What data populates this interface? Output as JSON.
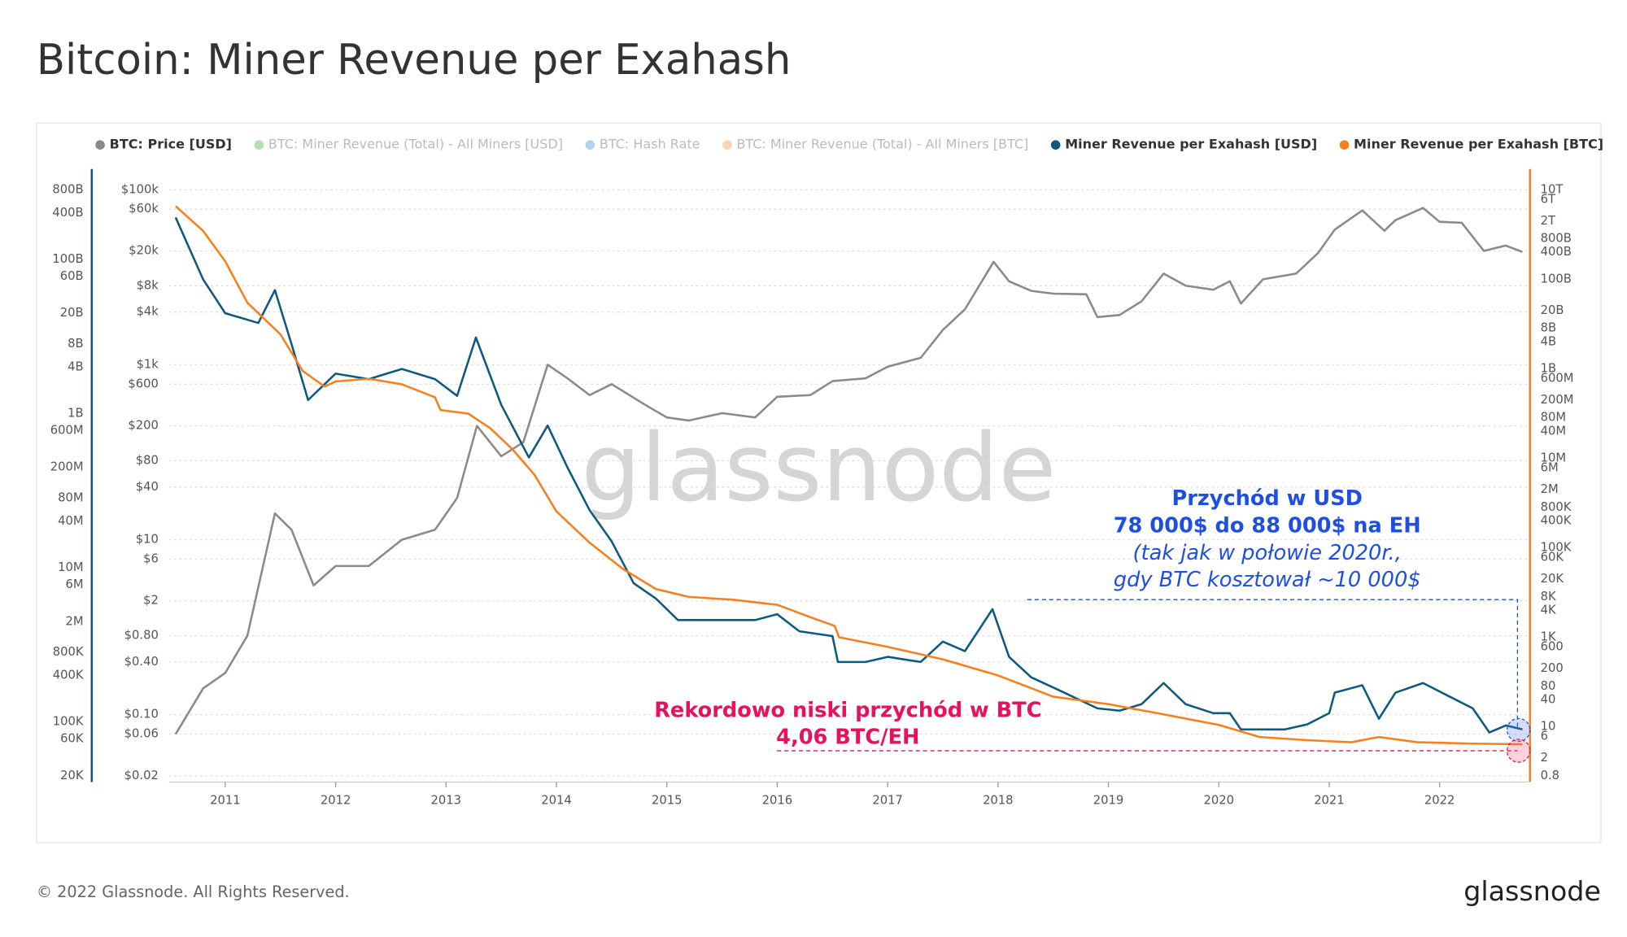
{
  "chart_data": {
    "type": "line",
    "title": "Bitcoin: Miner Revenue per Exahash",
    "footer": "© 2022 Glassnode. All Rights Reserved.",
    "logo": "glassnode",
    "watermark": "glassnode",
    "log_scale": true,
    "grid": true,
    "legend_position": "top",
    "xlim": [
      2010.49,
      2022.8
    ],
    "xticks": [
      2011,
      2012,
      2013,
      2014,
      2015,
      2016,
      2017,
      2018,
      2019,
      2020,
      2021,
      2022
    ],
    "ylim": [
      0.02,
      100000
    ],
    "yticks": [
      {
        "value": 100000,
        "label": "$100k"
      },
      {
        "value": 60000,
        "label": "$60k"
      },
      {
        "value": 20000,
        "label": "$20k"
      },
      {
        "value": 8000,
        "label": "$8k"
      },
      {
        "value": 4000,
        "label": "$4k"
      },
      {
        "value": 1000,
        "label": "$1k"
      },
      {
        "value": 600,
        "label": "$600"
      },
      {
        "value": 200,
        "label": "$200"
      },
      {
        "value": 80,
        "label": "$80"
      },
      {
        "value": 40,
        "label": "$40"
      },
      {
        "value": 10,
        "label": "$10"
      },
      {
        "value": 6,
        "label": "$6"
      },
      {
        "value": 2,
        "label": "$2"
      },
      {
        "value": 0.8,
        "label": "$0.80"
      },
      {
        "value": 0.4,
        "label": "$0.40"
      },
      {
        "value": 0.1,
        "label": "$0.10"
      },
      {
        "value": 0.06,
        "label": "$0.06"
      },
      {
        "value": 0.02,
        "label": "$0.02"
      }
    ],
    "y3lim": [
      20000,
      800000000000
    ],
    "y3ticks": [
      {
        "value": 800000000000,
        "label": "800B"
      },
      {
        "value": 400000000000,
        "label": "400B"
      },
      {
        "value": 100000000000,
        "label": "100B"
      },
      {
        "value": 60000000000,
        "label": "60B"
      },
      {
        "value": 20000000000,
        "label": "20B"
      },
      {
        "value": 8000000000,
        "label": "8B"
      },
      {
        "value": 4000000000,
        "label": "4B"
      },
      {
        "value": 1000000000,
        "label": "1B"
      },
      {
        "value": 600000000,
        "label": "600M"
      },
      {
        "value": 200000000,
        "label": "200M"
      },
      {
        "value": 80000000,
        "label": "80M"
      },
      {
        "value": 40000000,
        "label": "40M"
      },
      {
        "value": 10000000,
        "label": "10M"
      },
      {
        "value": 6000000,
        "label": "6M"
      },
      {
        "value": 2000000,
        "label": "2M"
      },
      {
        "value": 800000,
        "label": "800K"
      },
      {
        "value": 400000,
        "label": "400K"
      },
      {
        "value": 100000,
        "label": "100K"
      },
      {
        "value": 60000,
        "label": "60K"
      },
      {
        "value": 20000,
        "label": "20K"
      }
    ],
    "y2lim": [
      0.8,
      10000000000000
    ],
    "y2ticks": [
      {
        "value": 10000000000000,
        "label": "10T"
      },
      {
        "value": 6000000000000,
        "label": "6T"
      },
      {
        "value": 2000000000000,
        "label": "2T"
      },
      {
        "value": 800000000000,
        "label": "800B"
      },
      {
        "value": 400000000000,
        "label": "400B"
      },
      {
        "value": 100000000000,
        "label": "100B"
      },
      {
        "value": 20000000000,
        "label": "20B"
      },
      {
        "value": 8000000000,
        "label": "8B"
      },
      {
        "value": 4000000000,
        "label": "4B"
      },
      {
        "value": 1000000000,
        "label": "1B"
      },
      {
        "value": 600000000,
        "label": "600M"
      },
      {
        "value": 200000000,
        "label": "200M"
      },
      {
        "value": 80000000,
        "label": "80M"
      },
      {
        "value": 40000000,
        "label": "40M"
      },
      {
        "value": 10000000,
        "label": "10M"
      },
      {
        "value": 6000000,
        "label": "6M"
      },
      {
        "value": 2000000,
        "label": "2M"
      },
      {
        "value": 800000,
        "label": "800K"
      },
      {
        "value": 400000,
        "label": "400K"
      },
      {
        "value": 100000,
        "label": "100K"
      },
      {
        "value": 60000,
        "label": "60K"
      },
      {
        "value": 20000,
        "label": "20K"
      },
      {
        "value": 8000,
        "label": "8K"
      },
      {
        "value": 4000,
        "label": "4K"
      },
      {
        "value": 1000,
        "label": "1K"
      },
      600,
      200,
      80,
      40,
      10,
      6,
      2,
      0.8
    ],
    "series": [
      {
        "name": "BTC: Price [USD]",
        "color": "#8a8a8a",
        "visible": true,
        "axis": "y",
        "x": [
          2010.55,
          2010.8,
          2011.0,
          2011.2,
          2011.45,
          2011.6,
          2011.8,
          2012.0,
          2012.3,
          2012.6,
          2012.9,
          2013.1,
          2013.28,
          2013.5,
          2013.7,
          2013.92,
          2014.1,
          2014.3,
          2014.5,
          2014.8,
          2015.0,
          2015.2,
          2015.5,
          2015.8,
          2016.0,
          2016.3,
          2016.5,
          2016.8,
          2017.0,
          2017.3,
          2017.5,
          2017.7,
          2017.96,
          2018.1,
          2018.3,
          2018.5,
          2018.8,
          2018.9,
          2019.1,
          2019.3,
          2019.5,
          2019.7,
          2019.95,
          2020.1,
          2020.2,
          2020.4,
          2020.7,
          2020.9,
          2021.05,
          2021.3,
          2021.5,
          2021.6,
          2021.85,
          2022.0,
          2022.2,
          2022.4,
          2022.6,
          2022.75
        ],
        "values": [
          0.06,
          0.2,
          0.3,
          0.8,
          20,
          13,
          3,
          5,
          5,
          10,
          13,
          30,
          200,
          90,
          130,
          1000,
          700,
          450,
          600,
          350,
          250,
          230,
          280,
          250,
          430,
          450,
          650,
          700,
          950,
          1200,
          2500,
          4300,
          15000,
          9000,
          7000,
          6500,
          6400,
          3500,
          3700,
          5300,
          11000,
          8000,
          7200,
          9000,
          5000,
          9500,
          11000,
          19000,
          35000,
          58000,
          34000,
          45000,
          62000,
          43000,
          42000,
          20000,
          23000,
          19500
        ]
      },
      {
        "name": "BTC: Miner Revenue (Total) - All Miners [USD]",
        "color": "#1aa51a",
        "visible": false
      },
      {
        "name": "BTC: Hash Rate",
        "color": "#2f7ed8",
        "visible": false
      },
      {
        "name": "BTC: Miner Revenue (Total) - All Miners [BTC]",
        "color": "#f7801e",
        "visible": false
      },
      {
        "name": "Miner Revenue per Exahash [USD]",
        "color": "#0e5a7e",
        "visible": true,
        "axis": "y3",
        "x": [
          2010.55,
          2010.8,
          2011.0,
          2011.3,
          2011.45,
          2011.6,
          2011.75,
          2012.0,
          2012.3,
          2012.6,
          2012.9,
          2013.1,
          2013.27,
          2013.5,
          2013.75,
          2013.92,
          2014.1,
          2014.3,
          2014.5,
          2014.7,
          2014.9,
          2015.1,
          2015.5,
          2015.8,
          2016.0,
          2016.2,
          2016.5,
          2016.55,
          2016.8,
          2017.0,
          2017.3,
          2017.5,
          2017.7,
          2017.95,
          2018.1,
          2018.3,
          2018.6,
          2018.9,
          2019.1,
          2019.3,
          2019.5,
          2019.7,
          2019.95,
          2020.1,
          2020.2,
          2020.4,
          2020.6,
          2020.8,
          2021.0,
          2021.05,
          2021.3,
          2021.45,
          2021.6,
          2021.85,
          2022.1,
          2022.3,
          2022.45,
          2022.6,
          2022.75
        ],
        "values": [
          350000000000,
          55000000000,
          20000000000,
          15000000000,
          40000000000,
          8000000000,
          1500000000,
          3300000000,
          2800000000,
          3800000000,
          2800000000,
          1700000000,
          9700000000,
          1300000000,
          270000000,
          700000000,
          200000000,
          56000000,
          22000000,
          6300000,
          4000000,
          2100000,
          2100000,
          2100000,
          2500000,
          1500000,
          1300000,
          600000,
          600000,
          700000,
          600000,
          1100000,
          830000,
          2900000,
          700000,
          380000,
          240000,
          150000,
          140000,
          170000,
          320000,
          170000,
          130000,
          130000,
          80000,
          80000,
          80000,
          93000,
          130000,
          240000,
          300000,
          110000,
          240000,
          320000,
          210000,
          150000,
          73000,
          90000,
          80000
        ]
      },
      {
        "name": "Miner Revenue per Exahash [BTC]",
        "color": "#f7801e",
        "visible": true,
        "axis": "y2",
        "x": [
          2010.55,
          2010.8,
          2011.0,
          2011.2,
          2011.5,
          2011.7,
          2011.9,
          2012.0,
          2012.3,
          2012.6,
          2012.9,
          2012.95,
          2013.2,
          2013.4,
          2013.6,
          2013.8,
          2014.0,
          2014.3,
          2014.6,
          2014.9,
          2015.2,
          2015.6,
          2016.0,
          2016.3,
          2016.52,
          2016.56,
          2017.0,
          2017.5,
          2018.0,
          2018.5,
          2019.0,
          2019.5,
          2020.0,
          2020.37,
          2020.8,
          2021.2,
          2021.45,
          2021.8,
          2022.3,
          2022.6,
          2022.75
        ],
        "values": [
          4300000000000,
          1200000000000,
          250000000000,
          30000000000,
          5900000000,
          900000000,
          400000000,
          520000000,
          600000000,
          450000000,
          230000000,
          120000000,
          100000000,
          47000000,
          16000000,
          4300000,
          650000,
          130000,
          34000,
          12000,
          8000,
          6900,
          5300,
          2800,
          1800,
          1000,
          610,
          320,
          140,
          47,
          32,
          19,
          11,
          5.9,
          5,
          4.5,
          5.9,
          4.5,
          4.2,
          4.1,
          4.06
        ]
      }
    ],
    "annotations": {
      "usd_title": "Przychód w USD",
      "usd_range": "78 000$ do 88 000$ na EH",
      "usd_note1": "(tak jak w połowie 2020r.,",
      "usd_note2": "gdy BTC kosztował ~10 000$",
      "btc_title": "Rekordowo niski przychód w BTC",
      "btc_value": "4,06 BTC/EH"
    }
  }
}
